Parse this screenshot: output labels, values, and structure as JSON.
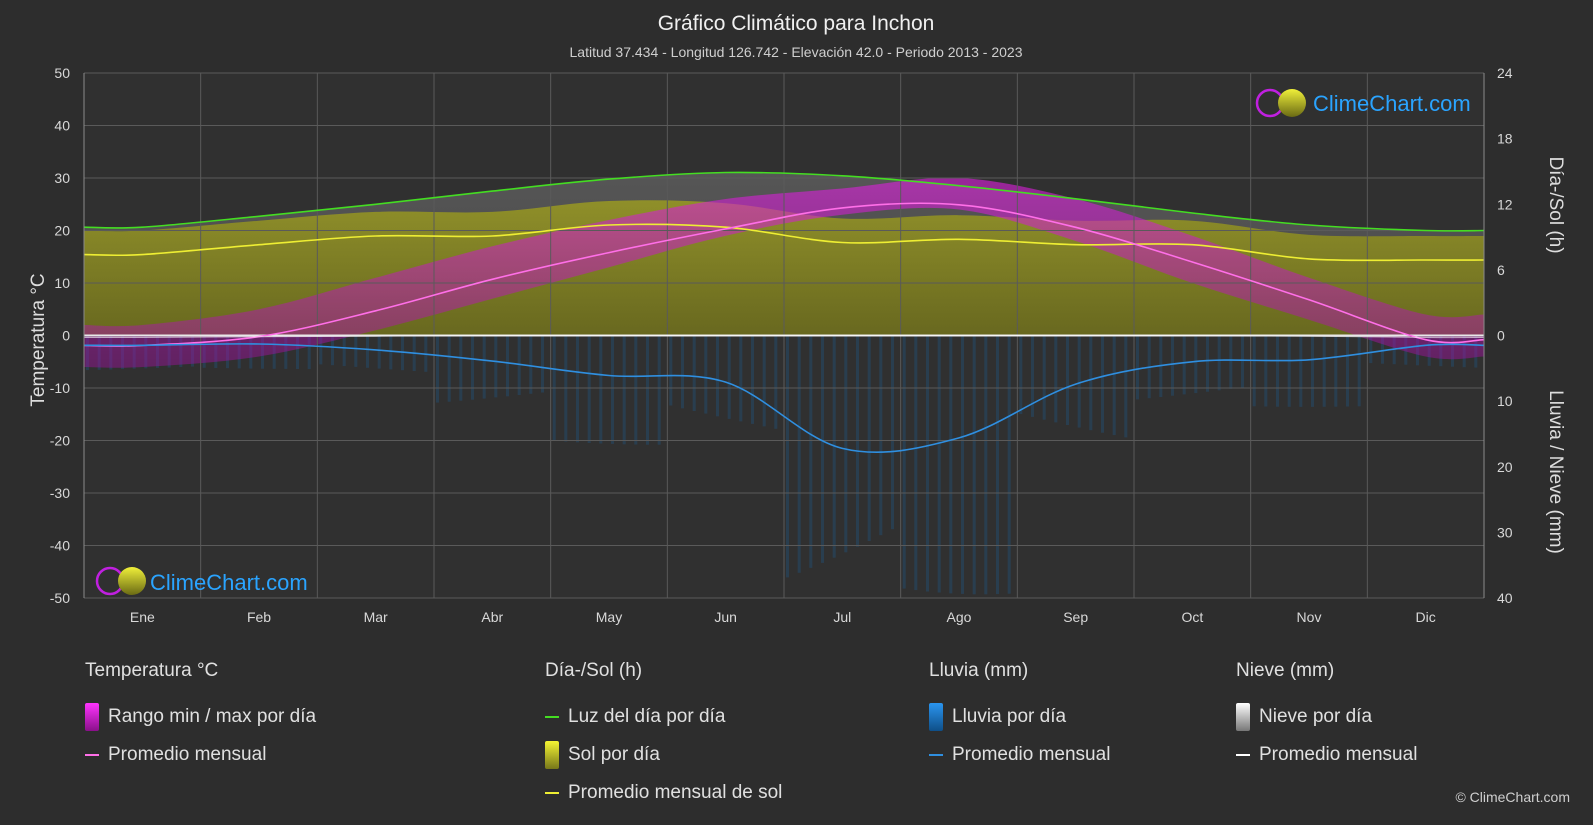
{
  "title": "Gráfico Climático para Inchon",
  "subtitle": "Latitud 37.434 - Longitud 126.742 - Elevación 42.0 - Periodo 2013 - 2023",
  "brand": "ClimeChart.com",
  "copyright": "© ClimeChart.com",
  "colors": {
    "background": "#2d2d2d",
    "grid": "#555555",
    "temp_range": "#d81bd8",
    "temp_avg": "#ff6fe8",
    "daylight": "#44dd22",
    "sun_fill": "#a8a820",
    "sun_avg": "#eeee33",
    "rain": "#1e88e5",
    "rain_avg": "#2f8fe0",
    "snow": "#cccccc",
    "snow_avg": "#ffffff",
    "brand": "#2aa4ff"
  },
  "chart_data": {
    "type": "line",
    "categories": [
      "Ene",
      "Feb",
      "Mar",
      "Abr",
      "May",
      "Jun",
      "Jul",
      "Ago",
      "Sep",
      "Oct",
      "Nov",
      "Dic"
    ],
    "left_axis": {
      "label": "Temperatura °C",
      "ticks": [
        50,
        40,
        30,
        20,
        10,
        0,
        -10,
        -20,
        -30,
        -40,
        -50
      ],
      "range": [
        -50,
        50
      ]
    },
    "right_axis_top": {
      "label": "Día-/Sol (h)",
      "ticks": [
        24,
        18,
        12,
        6,
        0
      ],
      "range": [
        0,
        24
      ]
    },
    "right_axis_bottom": {
      "label": "Lluvia / Nieve (mm)",
      "ticks": [
        0,
        10,
        20,
        30,
        40
      ],
      "range": [
        0,
        40
      ]
    },
    "series": [
      {
        "name": "Luz del día por día",
        "axis": "hours",
        "values": [
          9.9,
          10.9,
          12.0,
          13.2,
          14.3,
          14.9,
          14.6,
          13.7,
          12.5,
          11.2,
          10.1,
          9.6
        ]
      },
      {
        "name": "Promedio mensual de sol",
        "axis": "hours",
        "values": [
          7.4,
          8.3,
          9.1,
          9.1,
          10.1,
          9.9,
          8.5,
          8.8,
          8.3,
          8.3,
          7.0,
          6.9
        ]
      },
      {
        "name": "Rango min / max por día (máx)",
        "axis": "temperature",
        "values": [
          2,
          5,
          11,
          17,
          22,
          26,
          28,
          30,
          26,
          19,
          11,
          4
        ]
      },
      {
        "name": "Rango min / max por día (mín)",
        "axis": "temperature",
        "values": [
          -6,
          -4,
          1,
          7,
          13,
          19,
          23,
          24,
          18,
          10,
          3,
          -4
        ]
      },
      {
        "name": "Promedio mensual",
        "axis": "temperature",
        "values": [
          -1.9,
          -0.2,
          4.7,
          10.7,
          15.8,
          20.3,
          24.3,
          24.9,
          20.6,
          14.0,
          6.8,
          -0.8
        ]
      },
      {
        "name": "Lluvia promedio mensual",
        "axis": "precipitation",
        "values": [
          1.5,
          1.3,
          2.2,
          3.9,
          6.1,
          7.1,
          17.2,
          15.6,
          7.4,
          4.0,
          3.7,
          1.5
        ]
      },
      {
        "name": "Nieve promedio mensual",
        "axis": "precipitation",
        "values": [
          0.3,
          0.2,
          0.1,
          0,
          0,
          0,
          0,
          0,
          0,
          0,
          0.1,
          0.3
        ]
      }
    ]
  },
  "legend": {
    "temperature": {
      "title": "Temperatura °C",
      "items": [
        "Rango min / max por día",
        "Promedio mensual"
      ]
    },
    "sun": {
      "title": "Día-/Sol (h)",
      "items": [
        "Luz del día por día",
        "Sol por día",
        "Promedio mensual de sol"
      ]
    },
    "rain": {
      "title": "Lluvia (mm)",
      "items": [
        "Lluvia por día",
        "Promedio mensual"
      ]
    },
    "snow": {
      "title": "Nieve (mm)",
      "items": [
        "Nieve por día",
        "Promedio mensual"
      ]
    }
  }
}
